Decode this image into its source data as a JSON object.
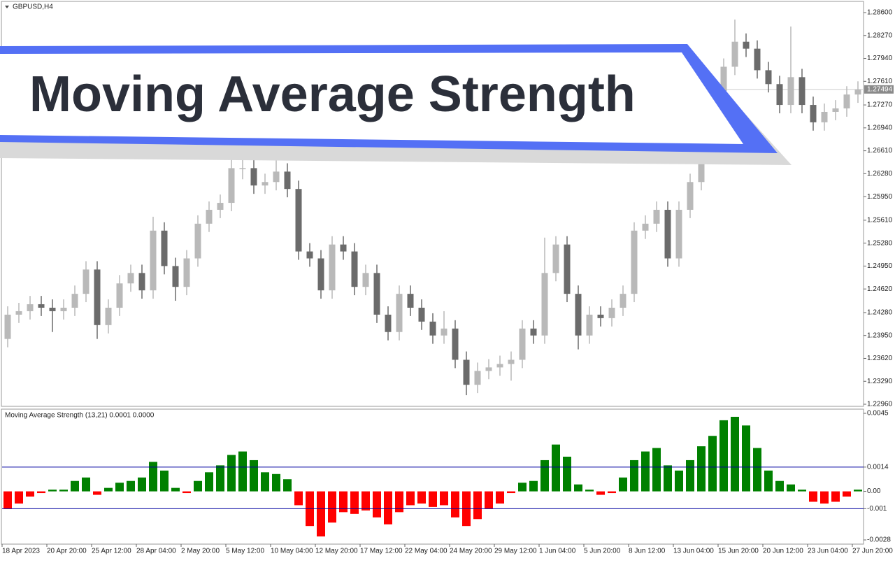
{
  "banner_title": "Moving Average Strength",
  "chart_data": [
    {
      "type": "candlestick",
      "title": "GBPUSD,H4",
      "up_color": "#b9b9b9",
      "down_color": "#6b6b6b",
      "ylim": [
        1.2296,
        1.286
      ],
      "yticks": [
        {
          "value": 1.286,
          "label": "1.28600"
        },
        {
          "value": 1.2827,
          "label": "1.28270"
        },
        {
          "value": 1.2794,
          "label": "1.27940"
        },
        {
          "value": 1.2761,
          "label": "1.27610"
        },
        {
          "value": 1.2727,
          "label": "1.27270"
        },
        {
          "value": 1.2694,
          "label": "1.26940"
        },
        {
          "value": 1.2661,
          "label": "1.26610"
        },
        {
          "value": 1.2628,
          "label": "1.26280"
        },
        {
          "value": 1.2595,
          "label": "1.25950"
        },
        {
          "value": 1.2561,
          "label": "1.25610"
        },
        {
          "value": 1.2528,
          "label": "1.25280"
        },
        {
          "value": 1.2495,
          "label": "1.24950"
        },
        {
          "value": 1.2462,
          "label": "1.24620"
        },
        {
          "value": 1.2428,
          "label": "1.24280"
        },
        {
          "value": 1.2395,
          "label": "1.23950"
        },
        {
          "value": 1.2362,
          "label": "1.23620"
        },
        {
          "value": 1.2329,
          "label": "1.23290"
        },
        {
          "value": 1.2296,
          "label": "1.22960"
        }
      ],
      "last_price": {
        "value": 1.27494,
        "label": "1.27494"
      },
      "open": [
        1.239,
        1.2425,
        1.243,
        1.244,
        1.2435,
        1.243,
        1.2435,
        1.2455,
        1.249,
        1.241,
        1.2435,
        1.247,
        1.2485,
        1.246,
        1.2546,
        1.2495,
        1.2465,
        1.2506,
        1.2556,
        1.2576,
        1.2586,
        1.2636,
        1.2636,
        1.2611,
        1.2616,
        1.2631,
        1.2606,
        1.2516,
        1.2506,
        1.246,
        1.2526,
        1.2516,
        1.2465,
        1.2485,
        1.2425,
        1.24,
        1.2455,
        1.2435,
        1.2415,
        1.2395,
        1.2405,
        1.236,
        1.2324,
        1.2344,
        1.2349,
        1.2354,
        1.236,
        1.2405,
        1.2395,
        1.2485,
        1.2526,
        1.2455,
        1.2395,
        1.2425,
        1.242,
        1.2435,
        1.2455,
        1.2546,
        1.2556,
        1.2576,
        1.2506,
        1.2576,
        1.2616,
        1.2667,
        1.2747,
        1.2782,
        1.2818,
        1.2808,
        1.2777,
        1.2757,
        1.2727,
        1.2767,
        1.2727,
        1.2702,
        1.2717,
        1.2722,
        1.2742
      ],
      "high": [
        1.2437,
        1.2442,
        1.2452,
        1.2452,
        1.2447,
        1.2447,
        1.2467,
        1.2502,
        1.2502,
        1.2447,
        1.2482,
        1.2497,
        1.2497,
        1.2566,
        1.2558,
        1.2507,
        1.2518,
        1.2568,
        1.2588,
        1.2598,
        1.2648,
        1.2652,
        1.2648,
        1.2628,
        1.267,
        1.2643,
        1.2618,
        1.2528,
        1.2518,
        1.2538,
        1.2538,
        1.2528,
        1.2497,
        1.2497,
        1.2437,
        1.2467,
        1.2467,
        1.2447,
        1.2427,
        1.243,
        1.2417,
        1.2372,
        1.2356,
        1.2361,
        1.2366,
        1.2372,
        1.2417,
        1.2417,
        1.2536,
        1.2538,
        1.2538,
        1.2467,
        1.2437,
        1.2437,
        1.2447,
        1.2467,
        1.2558,
        1.2568,
        1.2588,
        1.2588,
        1.2588,
        1.2628,
        1.2679,
        1.2759,
        1.2794,
        1.285,
        1.283,
        1.282,
        1.2789,
        1.2769,
        1.284,
        1.2779,
        1.2739,
        1.2729,
        1.2734,
        1.2754,
        1.2761
      ],
      "low": [
        1.2378,
        1.2413,
        1.2418,
        1.2423,
        1.24,
        1.2418,
        1.2423,
        1.2443,
        1.239,
        1.2398,
        1.2423,
        1.2458,
        1.2448,
        1.2448,
        1.2483,
        1.2445,
        1.2453,
        1.2494,
        1.2544,
        1.2564,
        1.2574,
        1.262,
        1.2599,
        1.2599,
        1.2604,
        1.2594,
        1.2504,
        1.2494,
        1.2448,
        1.2448,
        1.2504,
        1.2453,
        1.2453,
        1.2413,
        1.2388,
        1.2388,
        1.2423,
        1.2403,
        1.2383,
        1.2383,
        1.2348,
        1.2309,
        1.2312,
        1.2332,
        1.2337,
        1.233,
        1.2348,
        1.2383,
        1.2383,
        1.2473,
        1.2443,
        1.2375,
        1.2383,
        1.2408,
        1.2408,
        1.2423,
        1.2443,
        1.2534,
        1.2544,
        1.2494,
        1.2494,
        1.2564,
        1.2604,
        1.2655,
        1.2735,
        1.277,
        1.2796,
        1.2765,
        1.2745,
        1.2715,
        1.2715,
        1.2715,
        1.269,
        1.269,
        1.2705,
        1.271,
        1.273
      ],
      "close": [
        1.2425,
        1.243,
        1.244,
        1.2435,
        1.243,
        1.2435,
        1.2455,
        1.249,
        1.241,
        1.2435,
        1.247,
        1.2485,
        1.246,
        1.2546,
        1.2495,
        1.2465,
        1.2506,
        1.2556,
        1.2576,
        1.2586,
        1.2636,
        1.2636,
        1.2611,
        1.2616,
        1.2631,
        1.2606,
        1.2516,
        1.2506,
        1.246,
        1.2526,
        1.2516,
        1.2465,
        1.2485,
        1.2425,
        1.24,
        1.2455,
        1.2435,
        1.2415,
        1.2395,
        1.2405,
        1.236,
        1.2324,
        1.2344,
        1.2349,
        1.2354,
        1.236,
        1.2405,
        1.2395,
        1.2485,
        1.2526,
        1.2455,
        1.2395,
        1.2425,
        1.242,
        1.2435,
        1.2455,
        1.2546,
        1.2556,
        1.2576,
        1.2506,
        1.2576,
        1.2616,
        1.2667,
        1.2747,
        1.2782,
        1.2818,
        1.2808,
        1.2777,
        1.2757,
        1.2727,
        1.2767,
        1.2727,
        1.2702,
        1.2717,
        1.2722,
        1.2742,
        1.2749
      ]
    },
    {
      "type": "histogram",
      "title": "Moving Average Strength (13,21) 0.0001 0.0000",
      "positive_color": "#008000",
      "negative_color": "#ff0000",
      "level_color": "#0000a0",
      "levels": [
        0.0014,
        -0.001
      ],
      "ylim": [
        -0.0028,
        0.0045
      ],
      "yticks": [
        0.0045,
        0.0014,
        {
          "value": 0,
          "label": "0.00"
        },
        -0.001,
        -0.0028
      ],
      "categories": [
        "18 Apr 2023",
        null,
        null,
        null,
        "20 Apr 20:00",
        null,
        null,
        null,
        "25 Apr 12:00",
        null,
        null,
        null,
        "28 Apr 04:00",
        null,
        null,
        null,
        "2 May 20:00",
        null,
        null,
        null,
        "5 May 12:00",
        null,
        null,
        null,
        "10 May 04:00",
        null,
        null,
        null,
        "12 May 20:00",
        null,
        null,
        null,
        "17 May 12:00",
        null,
        null,
        null,
        "22 May 04:00",
        null,
        null,
        null,
        "24 May 20:00",
        null,
        null,
        null,
        "29 May 12:00",
        null,
        null,
        null,
        "1 Jun 04:00",
        null,
        null,
        null,
        "5 Jun 20:00",
        null,
        null,
        null,
        "8 Jun 12:00",
        null,
        null,
        null,
        "13 Jun 04:00",
        null,
        null,
        null,
        "15 Jun 20:00",
        null,
        null,
        null,
        "20 Jun 12:00",
        null,
        null,
        null,
        "23 Jun 04:00",
        null,
        null,
        null,
        "27 Jun 20:00"
      ],
      "values": [
        -0.001,
        -0.0007,
        -0.0003,
        -0.0001,
        0.0001,
        0.0001,
        0.0006,
        0.0008,
        -0.0002,
        0.0002,
        0.0005,
        0.0006,
        0.0008,
        0.0017,
        0.0012,
        0.0002,
        -0.0001,
        0.0006,
        0.0011,
        0.0015,
        0.0021,
        0.0023,
        0.0018,
        0.0011,
        0.001,
        0.0007,
        -0.0008,
        -0.002,
        -0.0026,
        -0.0018,
        -0.0012,
        -0.0013,
        -0.0011,
        -0.0015,
        -0.0019,
        -0.0012,
        -0.0008,
        -0.0007,
        -0.0009,
        -0.0008,
        -0.0015,
        -0.002,
        -0.0016,
        -0.001,
        -0.0007,
        -0.0001,
        0.0005,
        0.0006,
        0.0018,
        0.0027,
        0.002,
        0.0004,
        0.0001,
        -0.0002,
        -0.0001,
        0.0008,
        0.0018,
        0.0023,
        0.0025,
        0.0015,
        0.0012,
        0.0018,
        0.0026,
        0.0032,
        0.0041,
        0.0043,
        0.0038,
        0.0025,
        0.0012,
        0.0006,
        0.0004,
        0.0001,
        -0.0006,
        -0.0007,
        -0.0006,
        -0.0003,
        0.0001
      ]
    }
  ]
}
